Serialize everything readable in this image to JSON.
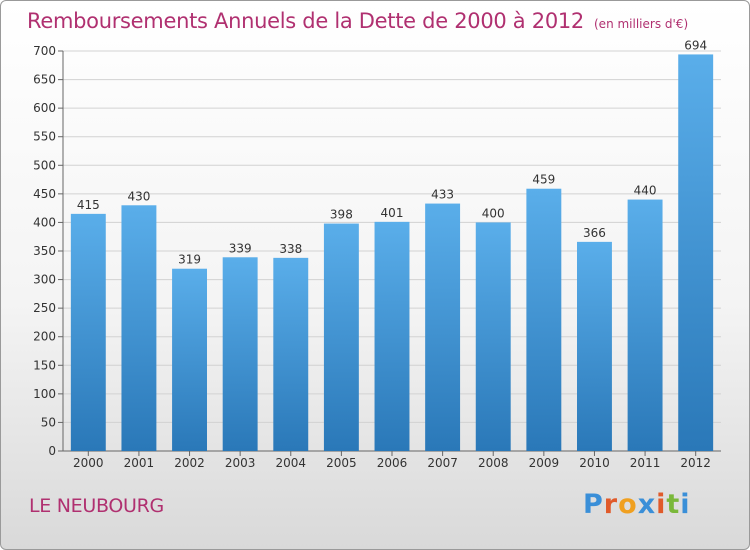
{
  "header": {
    "title": "Remboursements Annuels de la Dette de 2000 à 2012",
    "unit": "(en milliers d'€)"
  },
  "footer": {
    "commune": "LE NEUBOURG",
    "brand": "Proxiti"
  },
  "colors": {
    "title": "#b03070",
    "bar_top": "#5aaeea",
    "bar_bottom": "#2a78b8",
    "logo_letters": [
      "#3a8fd8",
      "#e05a2a",
      "#f0a020",
      "#3a8fd8",
      "#e05a2a",
      "#7ab83a",
      "#3a8fd8"
    ]
  },
  "chart_data": {
    "type": "bar",
    "title": "Remboursements Annuels de la Dette de 2000 à 2012",
    "xlabel": "",
    "ylabel": "",
    "categories": [
      "2000",
      "2001",
      "2002",
      "2003",
      "2004",
      "2005",
      "2006",
      "2007",
      "2008",
      "2009",
      "2010",
      "2011",
      "2012"
    ],
    "values": [
      415,
      430,
      319,
      339,
      338,
      398,
      401,
      433,
      400,
      459,
      366,
      440,
      694
    ],
    "ylim": [
      0,
      700
    ],
    "yticks": [
      0,
      50,
      100,
      150,
      200,
      250,
      300,
      350,
      400,
      450,
      500,
      550,
      600,
      650,
      700
    ],
    "grid": true,
    "legend": "none"
  }
}
